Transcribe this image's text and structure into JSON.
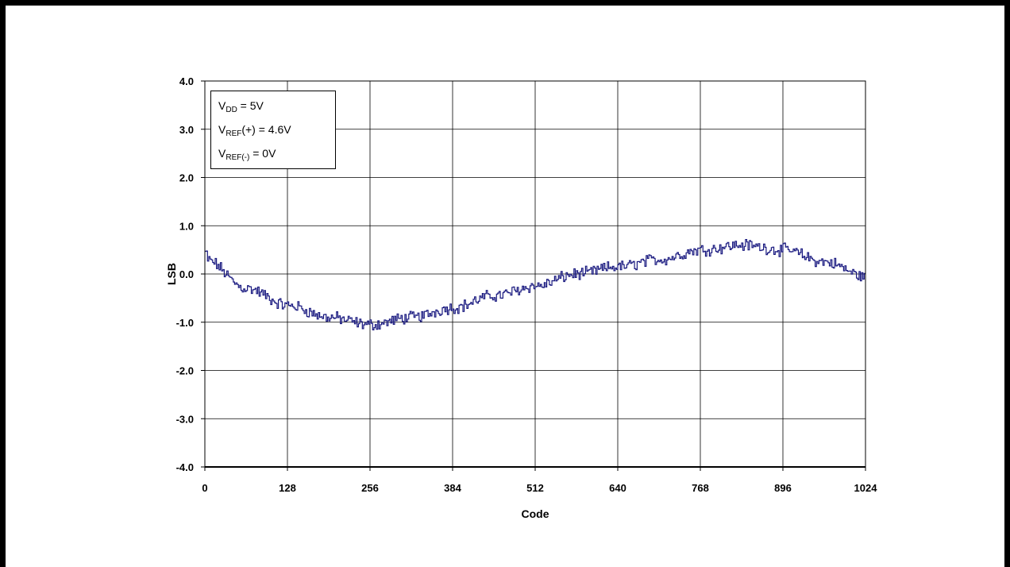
{
  "chart_data": {
    "type": "line",
    "xlabel": "Code",
    "ylabel": "LSB",
    "xlim": [
      0,
      1024
    ],
    "ylim": [
      -4.0,
      4.0
    ],
    "xticks": [
      0,
      128,
      256,
      384,
      512,
      640,
      768,
      896,
      1024
    ],
    "xtick_labels": [
      "0",
      "128",
      "256",
      "384",
      "512",
      "640",
      "768",
      "896",
      "1024"
    ],
    "yticks": [
      -4,
      -3,
      -2,
      -1,
      0,
      1,
      2,
      3,
      4
    ],
    "ytick_labels": [
      "-4.0",
      "-3.0",
      "-2.0",
      "-1.0",
      "0.0",
      "1.0",
      "2.0",
      "3.0",
      "4.0"
    ],
    "grid": true,
    "line_color": "#1a1a80",
    "annotation": [
      {
        "main": "V",
        "sub": "DD",
        "rest": " = 5V"
      },
      {
        "main": "V",
        "sub": "REF",
        "rest": "(+) = 4.6V"
      },
      {
        "main": "V",
        "sub": "REF(-)",
        "rest": " = 0V"
      }
    ],
    "trend": {
      "x": [
        0,
        64,
        128,
        192,
        256,
        320,
        384,
        448,
        512,
        576,
        640,
        704,
        768,
        832,
        896,
        960,
        1024
      ],
      "y": [
        0.3,
        -0.3,
        -0.65,
        -0.9,
        -1.05,
        -0.9,
        -0.7,
        -0.45,
        -0.25,
        0.0,
        0.15,
        0.3,
        0.5,
        0.6,
        0.5,
        0.25,
        -0.05
      ]
    },
    "noise_amplitude": 0.1
  }
}
